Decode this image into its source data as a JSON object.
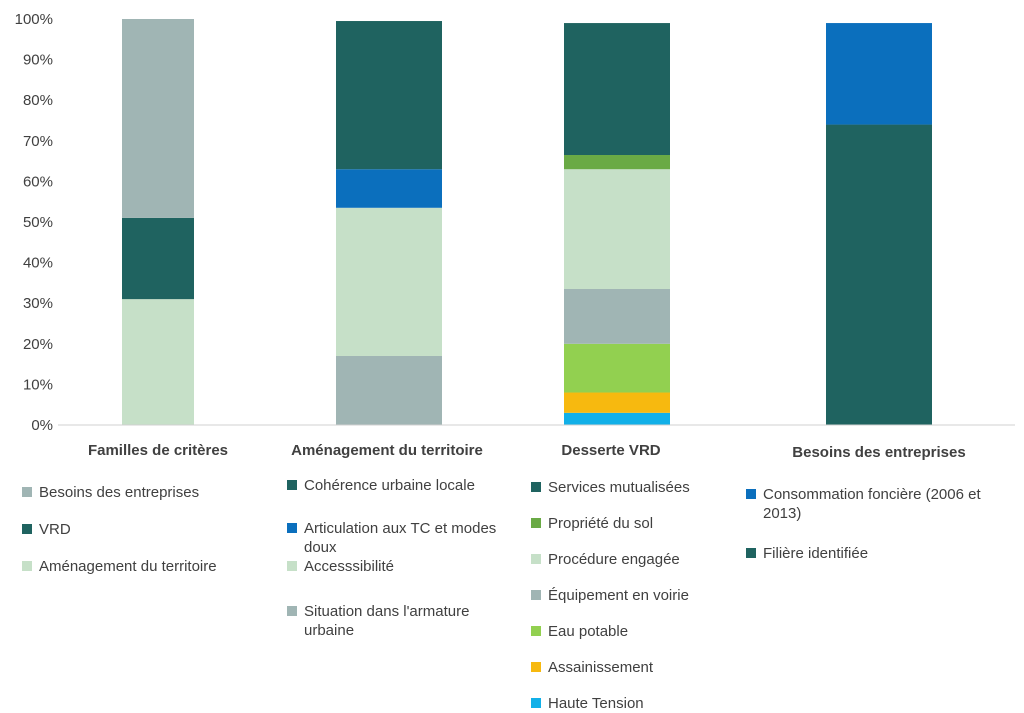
{
  "chart_data": {
    "type": "bar",
    "stacked": true,
    "ylim": [
      0,
      100
    ],
    "yticks": [
      "0%",
      "10%",
      "20%",
      "30%",
      "40%",
      "50%",
      "60%",
      "70%",
      "80%",
      "90%",
      "100%"
    ],
    "grid": false,
    "groups": [
      {
        "category": "Familles de critères",
        "segments": [
          {
            "name": "Aménagement du territoire",
            "value": 31,
            "color": "#c6e0c8"
          },
          {
            "name": "VRD",
            "value": 20,
            "color": "#1f6360"
          },
          {
            "name": "Besoins des entreprises",
            "value": 49,
            "color": "#a0b5b4"
          }
        ],
        "legend": [
          {
            "name": "Besoins des entreprises",
            "color": "#a0b5b4"
          },
          {
            "name": "VRD",
            "color": "#1f6360"
          },
          {
            "name": "Aménagement du territoire",
            "color": "#c6e0c8"
          }
        ]
      },
      {
        "category": "Aménagement du territoire",
        "segments": [
          {
            "name": "Situation dans l'armature urbaine",
            "value": 17,
            "color": "#a0b5b4"
          },
          {
            "name": "Accesssibilité",
            "value": 36.5,
            "color": "#c6e0c8"
          },
          {
            "name": "Articulation aux TC et modes doux",
            "value": 9.5,
            "color": "#0b6fbd"
          },
          {
            "name": "Cohérence urbaine locale",
            "value": 36.5,
            "color": "#1f6360"
          }
        ],
        "legend": [
          {
            "name": "Cohérence urbaine locale",
            "color": "#1f6360"
          },
          {
            "name": "Articulation aux TC et modes doux",
            "color": "#0b6fbd"
          },
          {
            "name": "Accesssibilité",
            "color": "#c6e0c8"
          },
          {
            "name": "Situation dans l'armature urbaine",
            "color": "#a0b5b4"
          }
        ]
      },
      {
        "category": "Desserte VRD",
        "segments": [
          {
            "name": "Haute Tension",
            "value": 3,
            "color": "#12b0e8"
          },
          {
            "name": "Assainissement",
            "value": 5,
            "color": "#f7b90f"
          },
          {
            "name": "Eau potable",
            "value": 12,
            "color": "#92d050"
          },
          {
            "name": "Équipement en voirie",
            "value": 13.5,
            "color": "#a0b5b4"
          },
          {
            "name": "Procédure engagée",
            "value": 29.5,
            "color": "#c6e0c8"
          },
          {
            "name": "Propriété du sol",
            "value": 3.5,
            "color": "#6aaa45"
          },
          {
            "name": "Services mutualisées",
            "value": 32.5,
            "color": "#1f6360"
          }
        ],
        "legend": [
          {
            "name": "Services mutualisées",
            "color": "#1f6360"
          },
          {
            "name": "Propriété du sol",
            "color": "#6aaa45"
          },
          {
            "name": "Procédure engagée",
            "color": "#c6e0c8"
          },
          {
            "name": "Équipement en voirie",
            "color": "#a0b5b4"
          },
          {
            "name": "Eau potable",
            "color": "#92d050"
          },
          {
            "name": "Assainissement",
            "color": "#f7b90f"
          },
          {
            "name": "Haute Tension",
            "color": "#12b0e8"
          }
        ]
      },
      {
        "category": "Besoins des entreprises",
        "segments": [
          {
            "name": "Filière identifiée",
            "value": 74,
            "color": "#1f6360"
          },
          {
            "name": "Consommation foncière (2006 et 2013)",
            "value": 25,
            "color": "#0b6fbd"
          }
        ],
        "legend": [
          {
            "name": "Consommation foncière (2006 et 2013)",
            "color": "#0b6fbd"
          },
          {
            "name": "Filière identifiée",
            "color": "#1f6360"
          }
        ]
      }
    ]
  }
}
